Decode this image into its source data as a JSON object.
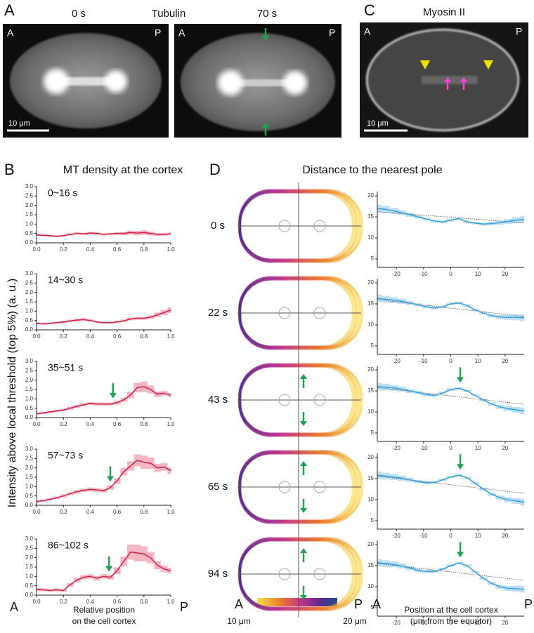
{
  "panel_labels": [
    "A",
    "B",
    "C",
    "D"
  ],
  "panel_a": {
    "title": "Tubulin",
    "frames": [
      "0 s",
      "70 s"
    ],
    "side_labels": [
      "A",
      "P",
      "A",
      "P"
    ],
    "scale_bar": "10 μm"
  },
  "panel_c": {
    "title": "Myosin II",
    "side_labels": [
      "A",
      "P"
    ],
    "scale_bar": "10 μm"
  },
  "panel_b": {
    "title": "MT density at the cortex",
    "y_label": "Intensity above local threshold (top 5%) (a. u.)",
    "x_label": [
      "Relative position",
      "on the cell cortex"
    ],
    "end_labels": [
      "A",
      "P"
    ]
  },
  "panel_d": {
    "title": "Distance to the nearest pole",
    "times": [
      "0 s",
      "22 s",
      "43 s",
      "65 s",
      "94 s"
    ],
    "end_labels_left": [
      "A",
      "P"
    ],
    "colorbar_labels": [
      "10 μm",
      "20 μm"
    ],
    "x_label": [
      "Position at the cell cortex",
      "(μm from the equator)"
    ],
    "end_labels_right": [
      "A",
      "P"
    ]
  },
  "chart_data": [
    {
      "type": "line",
      "annotation": "0~16 s",
      "color": "#d0234a",
      "band_color": "#f4b6c4",
      "x": [
        0,
        0.05,
        0.1,
        0.15,
        0.2,
        0.25,
        0.3,
        0.35,
        0.4,
        0.45,
        0.5,
        0.55,
        0.6,
        0.65,
        0.7,
        0.75,
        0.8,
        0.85,
        0.9,
        0.95,
        1
      ],
      "values": [
        0.42,
        0.4,
        0.38,
        0.35,
        0.38,
        0.45,
        0.5,
        0.48,
        0.52,
        0.5,
        0.45,
        0.48,
        0.5,
        0.5,
        0.55,
        0.52,
        0.55,
        0.5,
        0.45,
        0.45,
        0.48
      ],
      "errors": [
        0.05,
        0.05,
        0.05,
        0.05,
        0.05,
        0.06,
        0.06,
        0.06,
        0.06,
        0.06,
        0.06,
        0.06,
        0.07,
        0.08,
        0.1,
        0.12,
        0.12,
        0.1,
        0.08,
        0.07,
        0.07
      ],
      "xlim": [
        0,
        1
      ],
      "ylim": [
        0,
        3
      ],
      "xticks": [
        {
          "value": 0,
          "label": "0.0"
        },
        0.2,
        0.4,
        0.6,
        0.8,
        {
          "value": 1,
          "label": "1.0"
        }
      ],
      "yticks": [
        {
          "value": 0,
          "label": "0.0"
        },
        0.5,
        {
          "value": 1,
          "label": "1.0"
        },
        1.5,
        {
          "value": 2,
          "label": "2.0"
        },
        2.5,
        {
          "value": 3,
          "label": "3.0"
        }
      ]
    },
    {
      "type": "line",
      "annotation": "14~30 s",
      "color": "#d0234a",
      "band_color": "#f4b6c4",
      "x": [
        0,
        0.05,
        0.1,
        0.15,
        0.2,
        0.25,
        0.3,
        0.35,
        0.4,
        0.45,
        0.5,
        0.55,
        0.6,
        0.65,
        0.7,
        0.75,
        0.8,
        0.85,
        0.9,
        0.95,
        1
      ],
      "values": [
        0.35,
        0.32,
        0.35,
        0.38,
        0.42,
        0.48,
        0.52,
        0.55,
        0.5,
        0.42,
        0.38,
        0.38,
        0.42,
        0.48,
        0.58,
        0.62,
        0.62,
        0.68,
        0.8,
        0.92,
        1.05
      ],
      "errors": [
        0.05,
        0.05,
        0.05,
        0.05,
        0.06,
        0.06,
        0.07,
        0.07,
        0.06,
        0.05,
        0.05,
        0.05,
        0.06,
        0.07,
        0.08,
        0.08,
        0.08,
        0.1,
        0.12,
        0.14,
        0.15
      ],
      "xlim": [
        0,
        1
      ],
      "ylim": [
        0,
        3
      ],
      "xticks": [
        {
          "value": 0,
          "label": "0.0"
        },
        0.2,
        0.4,
        0.6,
        0.8,
        {
          "value": 1,
          "label": "1.0"
        }
      ],
      "yticks": [
        {
          "value": 0,
          "label": "0.0"
        },
        0.5,
        {
          "value": 1,
          "label": "1.0"
        },
        1.5,
        {
          "value": 2,
          "label": "2.0"
        },
        2.5,
        {
          "value": 3,
          "label": "3.0"
        }
      ]
    },
    {
      "type": "line",
      "annotation": "35~51 s",
      "color": "#d0234a",
      "band_color": "#f4b6c4",
      "arrow_x": 0.57,
      "x": [
        0,
        0.05,
        0.1,
        0.15,
        0.2,
        0.25,
        0.3,
        0.35,
        0.4,
        0.45,
        0.5,
        0.55,
        0.6,
        0.65,
        0.7,
        0.75,
        0.8,
        0.85,
        0.9,
        0.95,
        1
      ],
      "values": [
        0.2,
        0.25,
        0.3,
        0.35,
        0.4,
        0.5,
        0.6,
        0.68,
        0.75,
        0.72,
        0.72,
        0.72,
        0.8,
        0.95,
        1.2,
        1.6,
        1.65,
        1.5,
        1.25,
        1.3,
        1.2
      ],
      "errors": [
        0.06,
        0.06,
        0.06,
        0.06,
        0.07,
        0.08,
        0.08,
        0.08,
        0.08,
        0.08,
        0.08,
        0.08,
        0.1,
        0.12,
        0.18,
        0.25,
        0.28,
        0.22,
        0.15,
        0.12,
        0.1
      ],
      "xlim": [
        0,
        1
      ],
      "ylim": [
        0,
        3
      ],
      "xticks": [
        {
          "value": 0,
          "label": "0.0"
        },
        0.2,
        0.4,
        0.6,
        0.8,
        {
          "value": 1,
          "label": "1.0"
        }
      ],
      "yticks": [
        {
          "value": 0,
          "label": "0.0"
        },
        0.5,
        {
          "value": 1,
          "label": "1.0"
        },
        1.5,
        {
          "value": 2,
          "label": "2.0"
        },
        2.5,
        {
          "value": 3,
          "label": "3.0"
        }
      ]
    },
    {
      "type": "line",
      "annotation": "57~73 s",
      "color": "#d0234a",
      "band_color": "#f4b6c4",
      "arrow_x": 0.55,
      "x": [
        0,
        0.05,
        0.1,
        0.15,
        0.2,
        0.25,
        0.3,
        0.35,
        0.4,
        0.45,
        0.5,
        0.55,
        0.6,
        0.65,
        0.7,
        0.75,
        0.8,
        0.85,
        0.9,
        0.95,
        1
      ],
      "values": [
        0.2,
        0.25,
        0.32,
        0.4,
        0.5,
        0.62,
        0.72,
        0.8,
        0.85,
        0.82,
        0.78,
        0.95,
        1.3,
        1.8,
        2.1,
        2.4,
        2.3,
        2.25,
        2.0,
        2.05,
        1.85
      ],
      "errors": [
        0.06,
        0.06,
        0.07,
        0.07,
        0.08,
        0.08,
        0.09,
        0.09,
        0.1,
        0.1,
        0.1,
        0.12,
        0.15,
        0.2,
        0.25,
        0.32,
        0.35,
        0.3,
        0.22,
        0.2,
        0.18
      ],
      "xlim": [
        0,
        1
      ],
      "ylim": [
        0,
        3
      ],
      "xticks": [
        {
          "value": 0,
          "label": "0.0"
        },
        0.2,
        0.4,
        0.6,
        0.8,
        {
          "value": 1,
          "label": "1.0"
        }
      ],
      "yticks": [
        {
          "value": 0,
          "label": "0.0"
        },
        0.5,
        {
          "value": 1,
          "label": "1.0"
        },
        1.5,
        {
          "value": 2,
          "label": "2.0"
        },
        2.5,
        {
          "value": 3,
          "label": "3.0"
        }
      ]
    },
    {
      "type": "line",
      "annotation": "86~102 s",
      "color": "#d0234a",
      "band_color": "#f4b6c4",
      "arrow_x": 0.54,
      "x": [
        0,
        0.05,
        0.1,
        0.15,
        0.2,
        0.25,
        0.3,
        0.35,
        0.4,
        0.45,
        0.5,
        0.55,
        0.6,
        0.65,
        0.7,
        0.75,
        0.8,
        0.85,
        0.9,
        0.95,
        1
      ],
      "values": [
        0.3,
        0.28,
        0.25,
        0.28,
        0.25,
        0.55,
        0.8,
        0.95,
        1.0,
        0.9,
        1.0,
        0.95,
        1.3,
        1.8,
        2.3,
        2.25,
        2.2,
        2.0,
        1.6,
        1.4,
        1.3
      ],
      "errors": [
        0.08,
        0.08,
        0.08,
        0.08,
        0.08,
        0.1,
        0.12,
        0.12,
        0.12,
        0.12,
        0.12,
        0.12,
        0.18,
        0.25,
        0.4,
        0.45,
        0.4,
        0.3,
        0.22,
        0.18,
        0.15
      ],
      "xlim": [
        0,
        1
      ],
      "ylim": [
        0,
        3
      ],
      "xticks": [
        {
          "value": 0,
          "label": "0.0"
        },
        0.2,
        0.4,
        0.6,
        0.8,
        {
          "value": 1,
          "label": "1.0"
        }
      ],
      "yticks": [
        {
          "value": 0,
          "label": "0.0"
        },
        0.5,
        {
          "value": 1,
          "label": "1.0"
        },
        1.5,
        {
          "value": 2,
          "label": "2.0"
        },
        2.5,
        {
          "value": 3,
          "label": "3.0"
        }
      ]
    },
    {
      "type": "line",
      "color": "#3aa0dc",
      "band_color": "#bfe0f3",
      "x": [
        -27,
        -24,
        -21,
        -18,
        -15,
        -12,
        -9,
        -6,
        -3,
        0,
        3,
        6,
        9,
        12,
        15,
        18,
        21,
        24,
        27
      ],
      "values": [
        17.0,
        16.8,
        16.4,
        16.0,
        15.5,
        15.0,
        14.5,
        14.0,
        13.8,
        14.2,
        14.6,
        13.8,
        13.5,
        13.3,
        13.4,
        13.6,
        13.9,
        14.2,
        14.4
      ],
      "errors": [
        0.9,
        0.8,
        0.7,
        0.6,
        0.5,
        0.4,
        0.35,
        0.3,
        0.3,
        0.3,
        0.3,
        0.3,
        0.3,
        0.35,
        0.4,
        0.5,
        0.6,
        0.7,
        0.8
      ],
      "trend": [
        16.2,
        13.6
      ],
      "xlim": [
        -27,
        27
      ],
      "ylim": [
        3,
        21
      ],
      "xticks": [
        -20,
        -10,
        0,
        10,
        20
      ],
      "yticks": [
        5,
        10,
        15,
        20
      ]
    },
    {
      "type": "line",
      "color": "#3aa0dc",
      "band_color": "#bfe0f3",
      "x": [
        -27,
        -24,
        -21,
        -18,
        -15,
        -12,
        -9,
        -6,
        -3,
        0,
        3,
        6,
        9,
        12,
        15,
        18,
        21,
        24,
        27
      ],
      "values": [
        16.3,
        16.1,
        15.9,
        15.6,
        15.2,
        14.8,
        14.3,
        14.0,
        14.3,
        15.0,
        15.2,
        14.6,
        13.6,
        12.8,
        12.2,
        11.9,
        11.8,
        11.8,
        11.7
      ],
      "errors": [
        0.9,
        0.8,
        0.7,
        0.6,
        0.5,
        0.4,
        0.35,
        0.3,
        0.3,
        0.3,
        0.3,
        0.3,
        0.3,
        0.35,
        0.4,
        0.5,
        0.6,
        0.7,
        0.8
      ],
      "trend": [
        16.0,
        12.0
      ],
      "xlim": [
        -27,
        27
      ],
      "ylim": [
        3,
        21
      ],
      "xticks": [
        -20,
        -10,
        0,
        10,
        20
      ],
      "yticks": [
        5,
        10,
        15,
        20
      ]
    },
    {
      "type": "line",
      "color": "#3aa0dc",
      "band_color": "#bfe0f3",
      "arrow_x": 3.5,
      "x": [
        -27,
        -24,
        -21,
        -18,
        -15,
        -12,
        -9,
        -6,
        -3,
        0,
        3,
        6,
        9,
        12,
        15,
        18,
        21,
        24,
        27
      ],
      "values": [
        16.0,
        15.9,
        15.7,
        15.4,
        15.0,
        14.6,
        14.1,
        13.9,
        14.5,
        15.3,
        15.6,
        15.0,
        13.9,
        12.8,
        11.9,
        11.2,
        10.8,
        10.5,
        10.2
      ],
      "errors": [
        0.9,
        0.8,
        0.7,
        0.6,
        0.5,
        0.4,
        0.35,
        0.3,
        0.3,
        0.3,
        0.3,
        0.3,
        0.3,
        0.35,
        0.4,
        0.5,
        0.6,
        0.7,
        0.8
      ],
      "trend": [
        15.8,
        11.8
      ],
      "xlim": [
        -27,
        27
      ],
      "ylim": [
        3,
        21
      ],
      "xticks": [
        -20,
        -10,
        0,
        10,
        20
      ],
      "yticks": [
        5,
        10,
        15,
        20
      ]
    },
    {
      "type": "line",
      "color": "#3aa0dc",
      "band_color": "#bfe0f3",
      "arrow_x": 3.5,
      "x": [
        -27,
        -24,
        -21,
        -18,
        -15,
        -12,
        -9,
        -6,
        -3,
        0,
        3,
        6,
        9,
        12,
        15,
        18,
        21,
        24,
        27
      ],
      "values": [
        15.8,
        15.6,
        15.4,
        15.1,
        14.7,
        14.3,
        14.0,
        14.1,
        14.7,
        15.4,
        15.8,
        15.2,
        13.9,
        12.5,
        11.3,
        10.5,
        10.0,
        9.7,
        9.4
      ],
      "errors": [
        0.9,
        0.8,
        0.7,
        0.6,
        0.5,
        0.4,
        0.35,
        0.3,
        0.3,
        0.3,
        0.3,
        0.3,
        0.3,
        0.35,
        0.4,
        0.5,
        0.6,
        0.7,
        0.8
      ],
      "trend": [
        15.6,
        11.5
      ],
      "xlim": [
        -27,
        27
      ],
      "ylim": [
        3,
        21
      ],
      "xticks": [
        -20,
        -10,
        0,
        10,
        20
      ],
      "yticks": [
        5,
        10,
        15,
        20
      ]
    },
    {
      "type": "line",
      "color": "#3aa0dc",
      "band_color": "#bfe0f3",
      "arrow_x": 3.5,
      "x": [
        -27,
        -24,
        -21,
        -18,
        -15,
        -12,
        -9,
        -6,
        -3,
        0,
        3,
        6,
        9,
        12,
        15,
        18,
        21,
        24,
        27
      ],
      "values": [
        15.7,
        15.5,
        15.3,
        14.9,
        14.4,
        13.9,
        13.6,
        13.6,
        14.2,
        15.0,
        15.6,
        15.0,
        13.5,
        12.0,
        10.8,
        10.0,
        9.6,
        9.5,
        9.4
      ],
      "errors": [
        0.9,
        0.8,
        0.7,
        0.6,
        0.5,
        0.4,
        0.35,
        0.3,
        0.3,
        0.3,
        0.3,
        0.3,
        0.3,
        0.35,
        0.4,
        0.5,
        0.6,
        0.7,
        0.8
      ],
      "trend": [
        15.5,
        11.5
      ],
      "xlim": [
        -27,
        27
      ],
      "ylim": [
        3,
        21
      ],
      "xticks": [
        -20,
        -10,
        0,
        10,
        20
      ],
      "yticks": [
        5,
        10,
        15,
        20
      ]
    }
  ]
}
